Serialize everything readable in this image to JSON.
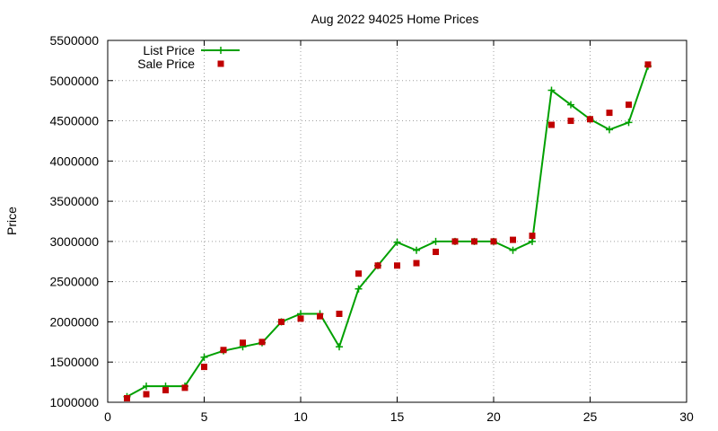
{
  "chart_data": {
    "type": "line",
    "title": "Aug 2022 94025 Home Prices",
    "xlabel": "",
    "ylabel": "Price",
    "xlim": [
      0,
      30
    ],
    "ylim": [
      1000000,
      5500000
    ],
    "x_ticks": [
      0,
      5,
      10,
      15,
      20,
      25,
      30
    ],
    "x_tick_labels": [
      "0",
      "5",
      "10",
      "15",
      "20",
      "25",
      "30"
    ],
    "y_ticks": [
      1000000,
      1500000,
      2000000,
      2500000,
      3000000,
      3500000,
      4000000,
      4500000,
      5000000,
      5500000
    ],
    "y_tick_labels": [
      "1000000",
      "1500000",
      "2000000",
      "2500000",
      "3000000",
      "3500000",
      "4000000",
      "4500000",
      "5000000",
      "5500000"
    ],
    "grid": true,
    "legend_position": "top-left",
    "x": [
      1,
      2,
      3,
      4,
      5,
      6,
      7,
      8,
      9,
      10,
      11,
      12,
      13,
      14,
      15,
      16,
      17,
      18,
      19,
      20,
      21,
      22,
      23,
      24,
      25,
      26,
      27,
      28
    ],
    "series": [
      {
        "name": "List Price",
        "type": "line",
        "color": "#00a000",
        "values": [
          1070000,
          1200000,
          1200000,
          1200000,
          1560000,
          1640000,
          1690000,
          1740000,
          2000000,
          2100000,
          2100000,
          1690000,
          2410000,
          2700000,
          2990000,
          2890000,
          3000000,
          3000000,
          3000000,
          3000000,
          2890000,
          3000000,
          4880000,
          4700000,
          4520000,
          4390000,
          4480000,
          5180000
        ]
      },
      {
        "name": "Sale Price",
        "type": "scatter",
        "color": "#c00000",
        "values": [
          1050000,
          1100000,
          1150000,
          1180000,
          1440000,
          1650000,
          1740000,
          1750000,
          2000000,
          2040000,
          2070000,
          2100000,
          2600000,
          2700000,
          2700000,
          2730000,
          2870000,
          3000000,
          3000000,
          3000000,
          3020000,
          3070000,
          4450000,
          4500000,
          4520000,
          4600000,
          4700000,
          5200000
        ]
      }
    ]
  }
}
